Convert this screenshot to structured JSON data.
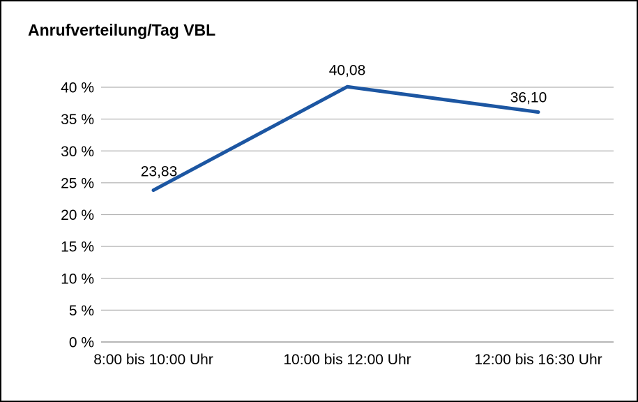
{
  "chart_data": {
    "type": "line",
    "title": "Anrufverteilung/Tag VBL",
    "categories": [
      "8:00 bis 10:00 Uhr",
      "10:00 bis 12:00 Uhr",
      "12:00 bis 16:30 Uhr"
    ],
    "values": [
      23.83,
      40.08,
      36.1
    ],
    "point_labels": [
      "23,83",
      "40,08",
      "36,10"
    ],
    "xlabel": "",
    "ylabel": "",
    "ylim": [
      0,
      40
    ],
    "ytick_step": 5,
    "ytick_suffix": " %",
    "grid": true,
    "legend_position": "none",
    "line_color": "#1c56a2",
    "grid_color": "#b3b3b3",
    "axis_color": "#8c8c8c",
    "label_color": "#000000",
    "background_color": "#ffffff",
    "frame_border_color": "#000000"
  }
}
